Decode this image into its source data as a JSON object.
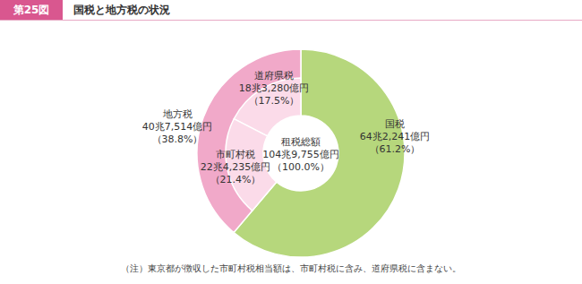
{
  "chart_data": {
    "type": "pie",
    "figure_label": "第25図",
    "title": "国税と地方税の状況",
    "note": "（注）東京都が徴収した市町村税相当額は、市町村税に含み、道府県税に含まない。",
    "center_label": "租税総額",
    "total": 1049755,
    "total_label": "104兆9,755億円",
    "total_percent_label": "（100.0%）",
    "rings": [
      {
        "categories": [
          "国税",
          "地方税"
        ],
        "values": [
          642241,
          407514
        ],
        "value_labels": [
          "64兆2,241億円",
          "40兆7,514億円"
        ],
        "percent_labels": [
          "（61.2%）",
          "（38.8%）"
        ],
        "colors": [
          "#b6d77c",
          "#f1a9c9"
        ]
      },
      {
        "categories": [
          "道府県税",
          "市町村税"
        ],
        "values": [
          183280,
          224235
        ],
        "value_labels": [
          "18兆3,280億円",
          "22兆4,235億円"
        ],
        "percent_labels": [
          "（17.5%）",
          "（21.4%）"
        ],
        "colors": [
          "#fbdbe9",
          "#fbdbe9"
        ]
      }
    ]
  }
}
